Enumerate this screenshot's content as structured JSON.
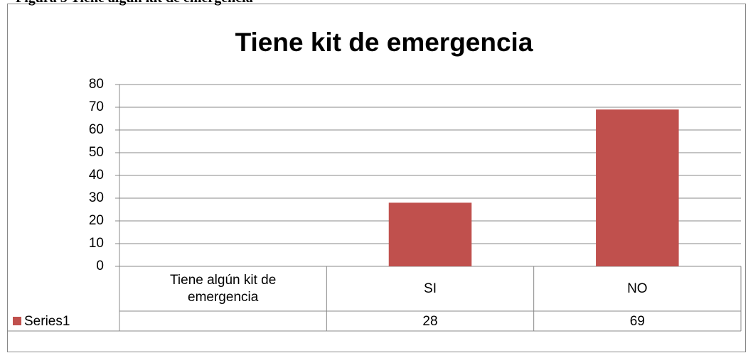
{
  "caption": "Figura 5 Tiene algún kit de emergencia",
  "chart_data": {
    "type": "bar",
    "title": "Tiene kit de emergencia",
    "categories": [
      "Tiene algún kit de emergencia",
      "SI",
      "NO"
    ],
    "series": [
      {
        "name": "Series1",
        "color": "#c0504d",
        "values": [
          null,
          28,
          69
        ]
      }
    ],
    "ylim": [
      0,
      80
    ],
    "yticks": [
      0,
      10,
      20,
      30,
      40,
      50,
      60,
      70,
      80
    ],
    "grid": true,
    "data_table": true
  }
}
